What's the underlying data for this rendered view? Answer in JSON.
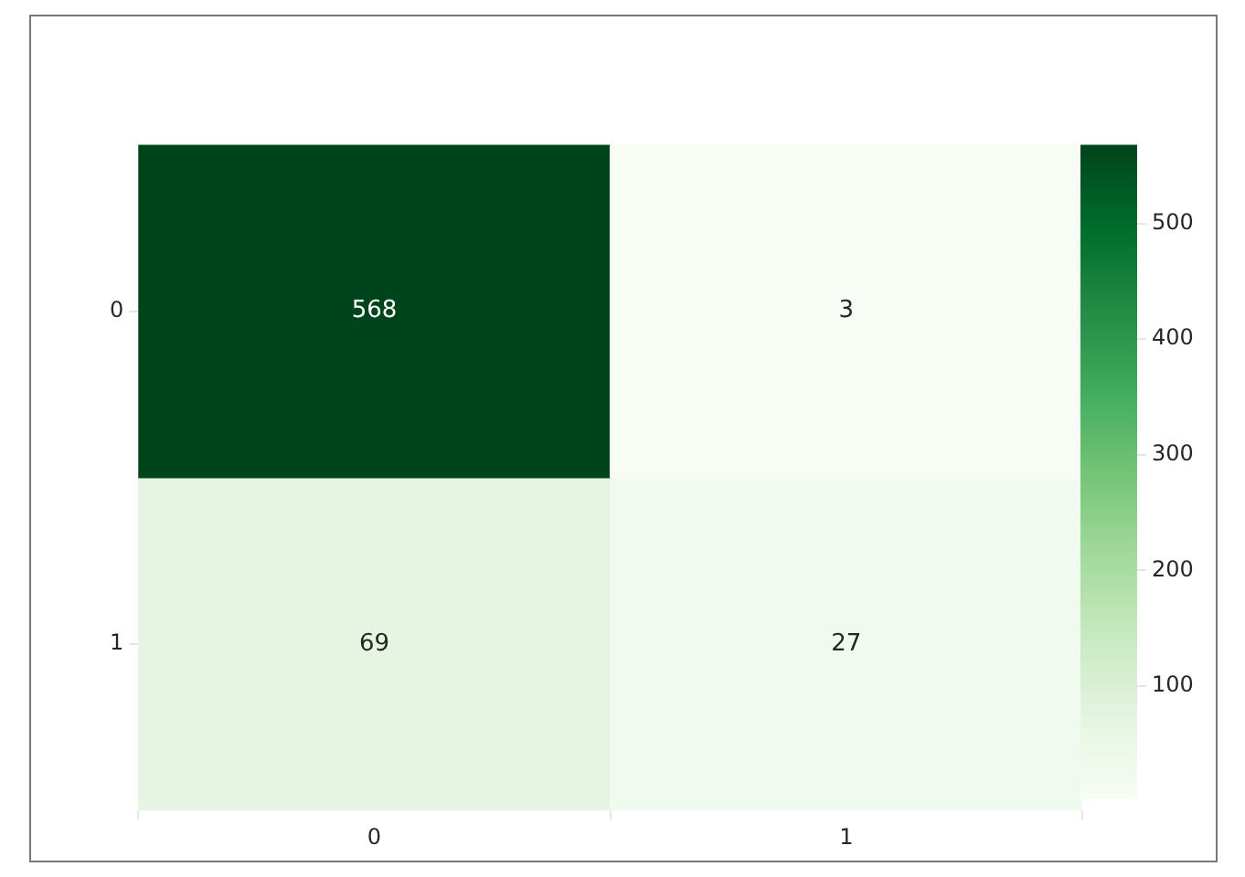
{
  "chart_data": {
    "type": "heatmap",
    "categories": [
      "0",
      "1"
    ],
    "y_categories": [
      "0",
      "1"
    ],
    "cells": [
      [
        568,
        3
      ],
      [
        69,
        27
      ]
    ],
    "data_labels": true,
    "clim": [
      3,
      568
    ],
    "cticks": [
      100,
      200,
      300,
      400,
      500
    ]
  }
}
